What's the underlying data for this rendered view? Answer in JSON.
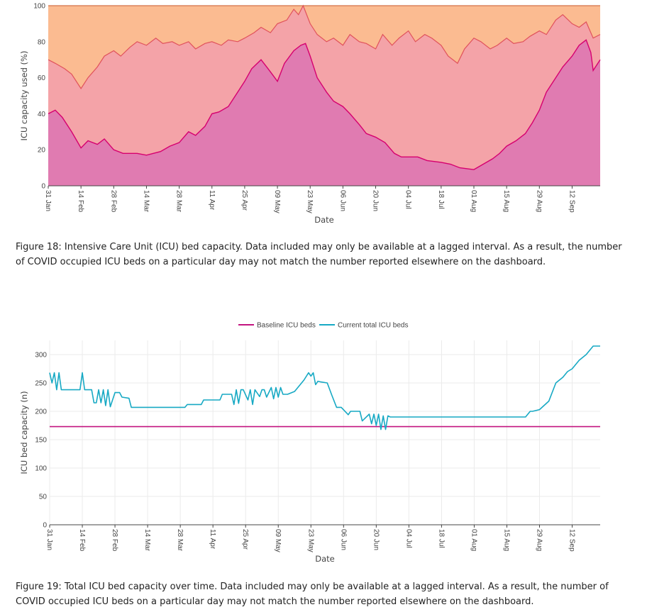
{
  "figure18": {
    "caption": "Figure 18: Intensive Care Unit (ICU) bed capacity. Data included may only be available at a lagged interval. As a result, the number of COVID occupied ICU beds on a particular day may not match the number reported elsewhere on the dashboard."
  },
  "figure19": {
    "caption": "Figure 19: Total ICU bed capacity over time. Data included may only be available at a lagged interval. As a result, the number of COVID occupied ICU beds on a particular day may not match the number reported elsewhere on the dashboard."
  },
  "colors": {
    "covid_fill": "#e07bb1",
    "covid_line": "#d6006f",
    "other_fill": "#f4a3a8",
    "other_line": "#e0525b",
    "free_fill": "#fbbb91",
    "free_line": "#d4734a",
    "baseline": "#c2147f",
    "current": "#17a9c4"
  },
  "chart_data": [
    {
      "type": "area",
      "title": "",
      "xlabel": "Date",
      "ylabel": "ICU capacity used (%)",
      "xlim": [
        "2022-01-31",
        "2022-09-24"
      ],
      "ylim": [
        0,
        100
      ],
      "yticks": [
        0,
        20,
        40,
        60,
        80,
        100
      ],
      "xticks": [
        "31 Jan",
        "14 Feb",
        "28 Feb",
        "14 Mar",
        "28 Mar",
        "11 Apr",
        "25 Apr",
        "09 May",
        "23 May",
        "06 Jun",
        "20 Jun",
        "04 Jul",
        "18 Jul",
        "01 Aug",
        "15 Aug",
        "29 Aug",
        "12 Sep"
      ],
      "xtick_dates": [
        "2022-01-31",
        "2022-02-14",
        "2022-02-28",
        "2022-03-14",
        "2022-03-28",
        "2022-04-11",
        "2022-04-25",
        "2022-05-09",
        "2022-05-23",
        "2022-06-06",
        "2022-06-20",
        "2022-07-04",
        "2022-07-18",
        "2022-08-01",
        "2022-08-15",
        "2022-08-29",
        "2022-09-12"
      ],
      "legend": false,
      "stacked": true,
      "series": [
        {
          "x": [
            "2022-01-31",
            "2022-02-03",
            "2022-02-06",
            "2022-02-10",
            "2022-02-14",
            "2022-02-17",
            "2022-02-21",
            "2022-02-24",
            "2022-02-28",
            "2022-03-04",
            "2022-03-10",
            "2022-03-14",
            "2022-03-20",
            "2022-03-24",
            "2022-03-28",
            "2022-04-01",
            "2022-04-04",
            "2022-04-08",
            "2022-04-11",
            "2022-04-14",
            "2022-04-18",
            "2022-04-21",
            "2022-04-25",
            "2022-04-28",
            "2022-05-02",
            "2022-05-05",
            "2022-05-09",
            "2022-05-12",
            "2022-05-16",
            "2022-05-19",
            "2022-05-21",
            "2022-05-23",
            "2022-05-26",
            "2022-05-30",
            "2022-06-02",
            "2022-06-06",
            "2022-06-09",
            "2022-06-13",
            "2022-06-16",
            "2022-06-20",
            "2022-06-24",
            "2022-06-28",
            "2022-07-01",
            "2022-07-04",
            "2022-07-08",
            "2022-07-12",
            "2022-07-18",
            "2022-07-22",
            "2022-07-26",
            "2022-08-01",
            "2022-08-05",
            "2022-08-09",
            "2022-08-12",
            "2022-08-15",
            "2022-08-19",
            "2022-08-23",
            "2022-08-26",
            "2022-08-29",
            "2022-09-01",
            "2022-09-05",
            "2022-09-08",
            "2022-09-12",
            "2022-09-15",
            "2022-09-18",
            "2022-09-20",
            "2022-09-21",
            "2022-09-24"
          ],
          "y": [
            40,
            42,
            38,
            30,
            21,
            25,
            23,
            26,
            20,
            18,
            18,
            17,
            19,
            22,
            24,
            30,
            28,
            33,
            40,
            41,
            44,
            50,
            58,
            65,
            70,
            65,
            58,
            68,
            75,
            78,
            79,
            72,
            60,
            52,
            47,
            44,
            40,
            34,
            29,
            27,
            24,
            18,
            16,
            16,
            16,
            14,
            13,
            12,
            10,
            9,
            12,
            15,
            18,
            22,
            25,
            29,
            35,
            42,
            52,
            60,
            66,
            72,
            78,
            81,
            74,
            64,
            70
          ],
          "name": ""
        },
        {
          "x": [
            "2022-01-31",
            "2022-02-03",
            "2022-02-07",
            "2022-02-10",
            "2022-02-14",
            "2022-02-17",
            "2022-02-21",
            "2022-02-24",
            "2022-02-28",
            "2022-03-03",
            "2022-03-07",
            "2022-03-10",
            "2022-03-14",
            "2022-03-18",
            "2022-03-21",
            "2022-03-25",
            "2022-03-28",
            "2022-04-01",
            "2022-04-04",
            "2022-04-08",
            "2022-04-11",
            "2022-04-15",
            "2022-04-18",
            "2022-04-22",
            "2022-04-25",
            "2022-04-29",
            "2022-05-02",
            "2022-05-06",
            "2022-05-09",
            "2022-05-13",
            "2022-05-16",
            "2022-05-18",
            "2022-05-20",
            "2022-05-23",
            "2022-05-26",
            "2022-05-30",
            "2022-06-02",
            "2022-06-06",
            "2022-06-09",
            "2022-06-13",
            "2022-06-16",
            "2022-06-20",
            "2022-06-23",
            "2022-06-27",
            "2022-06-30",
            "2022-07-04",
            "2022-07-07",
            "2022-07-11",
            "2022-07-14",
            "2022-07-18",
            "2022-07-21",
            "2022-07-25",
            "2022-07-28",
            "2022-08-01",
            "2022-08-04",
            "2022-08-08",
            "2022-08-11",
            "2022-08-15",
            "2022-08-18",
            "2022-08-22",
            "2022-08-25",
            "2022-08-29",
            "2022-09-01",
            "2022-09-05",
            "2022-09-08",
            "2022-09-12",
            "2022-09-15",
            "2022-09-18",
            "2022-09-21",
            "2022-09-24"
          ],
          "y": [
            70,
            68,
            65,
            62,
            54,
            60,
            66,
            72,
            75,
            72,
            77,
            80,
            78,
            82,
            79,
            80,
            78,
            80,
            76,
            79,
            80,
            78,
            81,
            80,
            82,
            85,
            88,
            85,
            90,
            92,
            98,
            95,
            100,
            90,
            84,
            80,
            82,
            78,
            84,
            80,
            79,
            76,
            84,
            78,
            82,
            86,
            80,
            84,
            82,
            78,
            72,
            68,
            76,
            82,
            80,
            76,
            78,
            82,
            79,
            80,
            83,
            86,
            84,
            92,
            95,
            90,
            88,
            91,
            82,
            84
          ],
          "name": ""
        },
        {
          "x": [
            "2022-01-31",
            "2022-09-24"
          ],
          "y": [
            100,
            100
          ],
          "name": ""
        }
      ]
    },
    {
      "type": "line",
      "title": "",
      "xlabel": "Date",
      "ylabel": "ICU bed capacity (n)",
      "xlim": [
        "2022-01-31",
        "2022-09-24"
      ],
      "ylim": [
        0,
        325
      ],
      "yticks": [
        0,
        50,
        100,
        150,
        200,
        250,
        300
      ],
      "xticks": [
        "31 Jan",
        "14 Feb",
        "28 Feb",
        "14 Mar",
        "28 Mar",
        "11 Apr",
        "25 Apr",
        "09 May",
        "23 May",
        "06 Jun",
        "20 Jun",
        "04 Jul",
        "18 Jul",
        "01 Aug",
        "15 Aug",
        "29 Aug",
        "12 Sep"
      ],
      "xtick_dates": [
        "2022-01-31",
        "2022-02-14",
        "2022-02-28",
        "2022-03-14",
        "2022-03-28",
        "2022-04-11",
        "2022-04-25",
        "2022-05-09",
        "2022-05-23",
        "2022-06-06",
        "2022-06-20",
        "2022-07-04",
        "2022-07-18",
        "2022-08-01",
        "2022-08-15",
        "2022-08-29",
        "2022-09-12"
      ],
      "legend": "top-center",
      "series": [
        {
          "name": "Baseline ICU beds",
          "x": [
            "2022-01-31",
            "2022-09-24"
          ],
          "y": [
            173,
            173
          ]
        },
        {
          "name": "Current total ICU beds",
          "x": [
            "2022-01-31",
            "2022-02-01",
            "2022-02-02",
            "2022-02-03",
            "2022-02-04",
            "2022-02-05",
            "2022-02-06",
            "2022-02-08",
            "2022-02-13",
            "2022-02-14",
            "2022-02-15",
            "2022-02-16",
            "2022-02-18",
            "2022-02-19",
            "2022-02-20",
            "2022-02-21",
            "2022-02-22",
            "2022-02-23",
            "2022-02-24",
            "2022-02-25",
            "2022-02-26",
            "2022-02-28",
            "2022-03-02",
            "2022-03-03",
            "2022-03-06",
            "2022-03-07",
            "2022-03-30",
            "2022-03-31",
            "2022-04-06",
            "2022-04-07",
            "2022-04-14",
            "2022-04-15",
            "2022-04-19",
            "2022-04-20",
            "2022-04-21",
            "2022-04-22",
            "2022-04-23",
            "2022-04-24",
            "2022-04-26",
            "2022-04-27",
            "2022-04-28",
            "2022-04-29",
            "2022-05-01",
            "2022-05-02",
            "2022-05-03",
            "2022-05-04",
            "2022-05-06",
            "2022-05-07",
            "2022-05-08",
            "2022-05-09",
            "2022-05-10",
            "2022-05-11",
            "2022-05-13",
            "2022-05-16",
            "2022-05-20",
            "2022-05-22",
            "2022-05-23",
            "2022-05-24",
            "2022-05-25",
            "2022-05-26",
            "2022-05-27",
            "2022-05-30",
            "2022-06-01",
            "2022-06-03",
            "2022-06-05",
            "2022-06-08",
            "2022-06-09",
            "2022-06-10",
            "2022-06-13",
            "2022-06-14",
            "2022-06-17",
            "2022-06-18",
            "2022-06-19",
            "2022-06-20",
            "2022-06-21",
            "2022-06-22",
            "2022-06-23",
            "2022-06-24",
            "2022-06-25",
            "2022-06-26",
            "2022-06-27",
            "2022-06-28",
            "2022-06-29",
            "2022-06-30",
            "2022-08-23",
            "2022-08-25",
            "2022-08-26",
            "2022-08-29",
            "2022-09-02",
            "2022-09-05",
            "2022-09-08",
            "2022-09-10",
            "2022-09-12",
            "2022-09-15",
            "2022-09-18",
            "2022-09-21",
            "2022-09-24"
          ],
          "y": [
            268,
            250,
            268,
            238,
            268,
            238,
            238,
            238,
            238,
            268,
            238,
            238,
            238,
            215,
            215,
            238,
            215,
            238,
            210,
            238,
            208,
            233,
            233,
            225,
            223,
            207,
            207,
            212,
            212,
            220,
            220,
            230,
            230,
            212,
            238,
            214,
            238,
            238,
            220,
            238,
            212,
            238,
            226,
            238,
            238,
            225,
            242,
            222,
            242,
            225,
            242,
            230,
            230,
            235,
            255,
            268,
            262,
            268,
            247,
            253,
            252,
            250,
            228,
            207,
            207,
            194,
            200,
            200,
            200,
            183,
            195,
            178,
            195,
            175,
            195,
            168,
            192,
            168,
            192,
            190,
            190,
            190,
            190,
            190,
            190,
            200,
            200,
            203,
            218,
            250,
            260,
            270,
            275,
            290,
            300,
            315,
            315
          ]
        }
      ]
    }
  ]
}
